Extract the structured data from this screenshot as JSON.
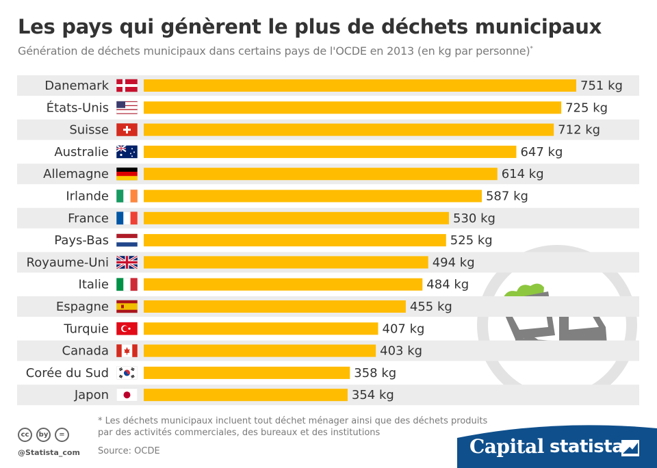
{
  "title": "Les pays qui génèrent le plus de déchets municipaux",
  "subtitle": "Génération de déchets municipaux dans certains pays de l'OCDE en 2013 (en kg par personne)",
  "subtitle_mark": "*",
  "footnote": "* Les déchets municipaux incluent tout déchet ménager ainsi que des déchets produits par des activités commerciales, des bureaux et des institutions",
  "source": "Source: OCDE",
  "handle": "@Statista_com",
  "brands": {
    "capital": "Capital",
    "statista": "statista"
  },
  "cc_icons": [
    "cc",
    "by",
    "="
  ],
  "colors": {
    "bar": "#ffbc00",
    "stripe": "#ececec",
    "text": "#333333",
    "muted": "#7a7a7a",
    "brand_blue": "#0f4f8c",
    "icon_gray": "#808080",
    "icon_green": "#8dc63f"
  },
  "chart_data": {
    "type": "bar",
    "orientation": "horizontal",
    "categories": [
      "Danemark",
      "États-Unis",
      "Suisse",
      "Australie",
      "Allemagne",
      "Irlande",
      "France",
      "Pays-Bas",
      "Royaume-Uni",
      "Italie",
      "Espagne",
      "Turquie",
      "Canada",
      "Corée du Sud",
      "Japon"
    ],
    "flags": [
      "dk",
      "us",
      "ch",
      "au",
      "de",
      "ie",
      "fr",
      "nl",
      "gb",
      "it",
      "es",
      "tr",
      "ca",
      "kr",
      "jp"
    ],
    "values": [
      751,
      725,
      712,
      647,
      614,
      587,
      530,
      525,
      494,
      484,
      455,
      407,
      403,
      358,
      354
    ],
    "value_labels": [
      "751 kg",
      "725 kg",
      "712 kg",
      "647 kg",
      "614 kg",
      "587 kg",
      "530 kg",
      "525 kg",
      "494 kg",
      "484 kg",
      "455 kg",
      "407 kg",
      "403 kg",
      "358 kg",
      "354 kg"
    ],
    "unit": "kg",
    "xlim": [
      0,
      751
    ]
  }
}
